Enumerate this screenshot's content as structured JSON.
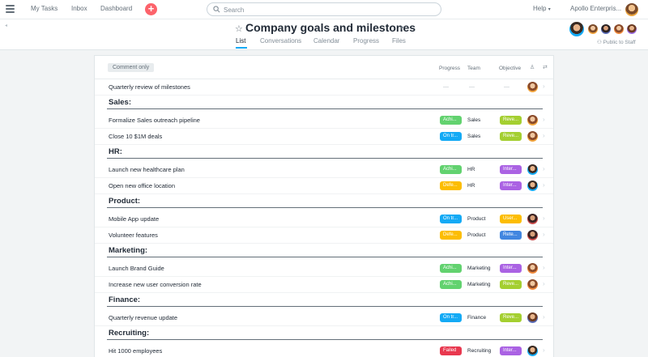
{
  "topbar": {
    "nav": [
      "My Tasks",
      "Inbox",
      "Dashboard"
    ],
    "search_placeholder": "Search",
    "help_label": "Help",
    "org_label": "Apollo Enterpris..."
  },
  "project": {
    "title": "Company goals and milestones",
    "tabs": [
      "List",
      "Conversations",
      "Calendar",
      "Progress",
      "Files"
    ],
    "active_tab": "List",
    "public_label": "Public to Staff"
  },
  "list": {
    "comment_only_label": "Comment only",
    "columns": {
      "progress": "Progress",
      "team": "Team",
      "objective": "Objective"
    },
    "standalone_task": {
      "name": "Quarterly review of milestones",
      "progress": "—",
      "team": "—",
      "objective": "—"
    },
    "sections": [
      {
        "label": "Sales:",
        "tasks": [
          {
            "name": "Formalize Sales outreach pipeline",
            "progress": "Achi...",
            "team": "Sales",
            "objective": "Reve..."
          },
          {
            "name": "Close 10 $1M deals",
            "progress": "On tr...",
            "team": "Sales",
            "objective": "Reve..."
          }
        ]
      },
      {
        "label": "HR:",
        "tasks": [
          {
            "name": "Launch new healthcare plan",
            "progress": "Achi...",
            "team": "HR",
            "objective": "Inter..."
          },
          {
            "name": "Open new office location",
            "progress": "Defe...",
            "team": "HR",
            "objective": "Inter..."
          }
        ]
      },
      {
        "label": "Product:",
        "tasks": [
          {
            "name": "Mobile App update",
            "progress": "On tr...",
            "team": "Product",
            "objective": "User..."
          },
          {
            "name": "Volunteer features",
            "progress": "Defe...",
            "team": "Product",
            "objective": "Rete..."
          }
        ]
      },
      {
        "label": "Marketing:",
        "tasks": [
          {
            "name": "Launch Brand Guide",
            "progress": "Achi...",
            "team": "Marketing",
            "objective": "Inter..."
          },
          {
            "name": "Increase new user conversion rate",
            "progress": "Achi...",
            "team": "Marketing",
            "objective": "Reve..."
          }
        ]
      },
      {
        "label": "Finance:",
        "tasks": [
          {
            "name": "Quarterly revenue update",
            "progress": "On tr...",
            "team": "Finance",
            "objective": "Reve..."
          }
        ]
      },
      {
        "label": "Recruiting:",
        "tasks": [
          {
            "name": "Hit 1000 employees",
            "progress": "Failed",
            "team": "Recruiting",
            "objective": "Inter..."
          }
        ]
      }
    ]
  },
  "colors": {
    "achieved": "#62d26f",
    "on_track": "#14aaf5",
    "deferred": "#fcbd01",
    "failed": "#e8384f",
    "revenue": "#a4cf30",
    "internal": "#aa62e3",
    "user": "#fcbd01",
    "retention": "#4186e0",
    "accent": "#14aaf5",
    "plus": "#fc636b"
  },
  "icons": {
    "menu": "hamburger-icon",
    "search": "search-icon",
    "star": "star-icon",
    "lock": "lock-icon",
    "person": "person-icon",
    "sort": "sort-icon"
  }
}
